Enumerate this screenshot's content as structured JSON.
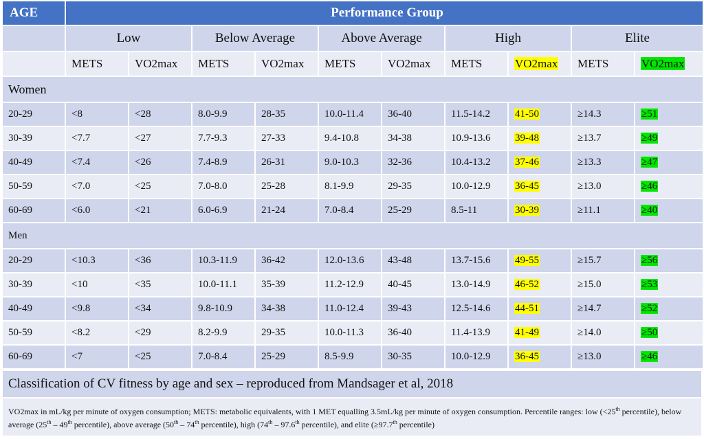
{
  "header": {
    "age": "AGE",
    "performance_group": "Performance Group"
  },
  "groups": [
    "Low",
    "Below Average",
    "Above Average",
    "High",
    "Elite"
  ],
  "subheaders": {
    "mets": "METS",
    "vo2max": "VO2max"
  },
  "highlight_colors": {
    "high_vo2max": "#ffff00",
    "elite_vo2max": "#00e600",
    "header": "#4472c4"
  },
  "sections": [
    {
      "label": "Women",
      "rows": [
        {
          "age": "20-29",
          "cells": [
            "<8",
            "<28",
            "8.0-9.9",
            "28-35",
            "10.0-11.4",
            "36-40",
            "11.5-14.2",
            "41-50",
            "≥14.3",
            "≥51"
          ]
        },
        {
          "age": "30-39",
          "cells": [
            "<7.7",
            "<27",
            "7.7-9.3",
            "27-33",
            "9.4-10.8",
            "34-38",
            "10.9-13.6",
            "39-48",
            "≥13.7",
            "≥49"
          ]
        },
        {
          "age": "40-49",
          "cells": [
            "<7.4",
            "<26",
            "7.4-8.9",
            "26-31",
            "9.0-10.3",
            "32-36",
            "10.4-13.2",
            "37-46",
            "≥13.3",
            "≥47"
          ]
        },
        {
          "age": "50-59",
          "cells": [
            "<7.0",
            "<25",
            "7.0-8.0",
            "25-28",
            "8.1-9.9",
            "29-35",
            "10.0-12.9",
            "36-45",
            "≥13.0",
            "≥46"
          ]
        },
        {
          "age": "60-69",
          "cells": [
            "<6.0",
            "<21",
            "6.0-6.9",
            "21-24",
            "7.0-8.4",
            "25-29",
            "8.5-11",
            "30-39",
            "≥11.1",
            "≥40"
          ]
        }
      ]
    },
    {
      "label": "Men",
      "rows": [
        {
          "age": "20-29",
          "cells": [
            "<10.3",
            "<36",
            "10.3-11.9",
            "36-42",
            "12.0-13.6",
            "43-48",
            "13.7-15.6",
            "49-55",
            "≥15.7",
            "≥56"
          ]
        },
        {
          "age": "30-39",
          "cells": [
            "<10",
            "<35",
            "10.0-11.1",
            "35-39",
            "11.2-12.9",
            "40-45",
            "13.0-14.9",
            "46-52",
            "≥15.0",
            "≥53"
          ]
        },
        {
          "age": "40-49",
          "cells": [
            "<9.8",
            "<34",
            "9.8-10.9",
            "34-38",
            "11.0-12.4",
            "39-43",
            "12.5-14.6",
            "44-51",
            "≥14.7",
            "≥52"
          ]
        },
        {
          "age": "50-59",
          "cells": [
            "<8.2",
            "<29",
            "8.2-9.9",
            "29-35",
            "10.0-11.3",
            "36-40",
            "11.4-13.9",
            "41-49",
            "≥14.0",
            "≥50"
          ]
        },
        {
          "age": "60-69",
          "cells": [
            "<7",
            "<25",
            "7.0-8.4",
            "25-29",
            "8.5-9.9",
            "30-35",
            "10.0-12.9",
            "36-45",
            "≥13.0",
            "≥46"
          ]
        }
      ]
    }
  ],
  "caption": "Classification of CV fitness by age and sex – reproduced from Mandsager et al, 2018",
  "footnote": {
    "intro": "VO2max in mL/kg per minute of oxygen consumption; METS: metabolic equivalents, with 1 MET equalling 3.5mL/kg per minute of oxygen consumption. Percentile ranges: low (<25",
    "sup_th": "th",
    "p_low_end": " percentile), below average (25",
    "p_ba_mid": " – 49",
    "p_ba_end": " percentile), above average (50",
    "p_aa_mid": " – 74",
    "p_aa_end": " percentile), high (74",
    "p_high_mid": " – 97.6",
    "p_high_end": " percentile), and elite (≥97.7",
    "p_elite_end": " percentile)"
  }
}
